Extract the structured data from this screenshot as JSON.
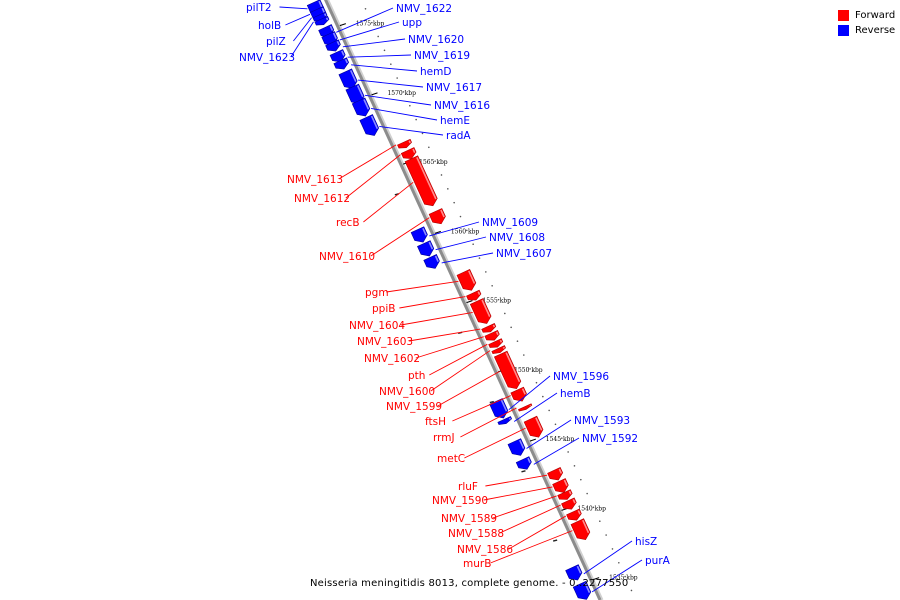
{
  "caption": "Neisseria meningitidis 8013, complete genome. - 0..2277550",
  "legend": [
    {
      "label": "Forward",
      "color": "#ff0000"
    },
    {
      "label": "Reverse",
      "color": "#0000ff"
    }
  ],
  "colors": {
    "forward": "#ff0000",
    "reverse": "#0000ff",
    "backbone": "#999999"
  },
  "ticks": [
    {
      "label": "1575 kbp",
      "kbp": 1575
    },
    {
      "label": "1570 kbp",
      "kbp": 1570
    },
    {
      "label": "1565 kbp",
      "kbp": 1565
    },
    {
      "label": "1560 kbp",
      "kbp": 1560
    },
    {
      "label": "1555 kbp",
      "kbp": 1555
    },
    {
      "label": "1550 kbp",
      "kbp": 1550
    },
    {
      "label": "1545 kbp",
      "kbp": 1545
    },
    {
      "label": "1540 kbp",
      "kbp": 1540
    },
    {
      "label": "1535 kbp",
      "kbp": 1535
    }
  ],
  "genes": [
    {
      "name": "pilT2",
      "strand": "reverse"
    },
    {
      "name": "holB",
      "strand": "reverse"
    },
    {
      "name": "pilZ",
      "strand": "reverse"
    },
    {
      "name": "NMV_1623",
      "strand": "reverse"
    },
    {
      "name": "NMV_1622",
      "strand": "reverse"
    },
    {
      "name": "upp",
      "strand": "reverse"
    },
    {
      "name": "NMV_1620",
      "strand": "reverse"
    },
    {
      "name": "NMV_1619",
      "strand": "reverse"
    },
    {
      "name": "hemD",
      "strand": "reverse"
    },
    {
      "name": "NMV_1617",
      "strand": "reverse"
    },
    {
      "name": "NMV_1616",
      "strand": "reverse"
    },
    {
      "name": "hemE",
      "strand": "reverse"
    },
    {
      "name": "radA",
      "strand": "reverse"
    },
    {
      "name": "NMV_1613",
      "strand": "forward"
    },
    {
      "name": "NMV_1612",
      "strand": "forward"
    },
    {
      "name": "recB",
      "strand": "forward"
    },
    {
      "name": "NMV_1610",
      "strand": "forward"
    },
    {
      "name": "NMV_1609",
      "strand": "reverse"
    },
    {
      "name": "NMV_1608",
      "strand": "reverse"
    },
    {
      "name": "NMV_1607",
      "strand": "reverse"
    },
    {
      "name": "pgm",
      "strand": "forward"
    },
    {
      "name": "ppiB",
      "strand": "forward"
    },
    {
      "name": "NMV_1604",
      "strand": "forward"
    },
    {
      "name": "NMV_1603",
      "strand": "forward"
    },
    {
      "name": "NMV_1602",
      "strand": "forward"
    },
    {
      "name": "pth",
      "strand": "forward"
    },
    {
      "name": "NMV_1600",
      "strand": "forward"
    },
    {
      "name": "NMV_1599",
      "strand": "forward"
    },
    {
      "name": "ftsH",
      "strand": "forward"
    },
    {
      "name": "rrmJ",
      "strand": "forward"
    },
    {
      "name": "metC",
      "strand": "forward"
    },
    {
      "name": "NMV_1596",
      "strand": "reverse"
    },
    {
      "name": "hemB",
      "strand": "reverse"
    },
    {
      "name": "NMV_1593",
      "strand": "reverse"
    },
    {
      "name": "NMV_1592",
      "strand": "reverse"
    },
    {
      "name": "rluF",
      "strand": "forward"
    },
    {
      "name": "NMV_1590",
      "strand": "forward"
    },
    {
      "name": "NMV_1589",
      "strand": "forward"
    },
    {
      "name": "NMV_1588",
      "strand": "forward"
    },
    {
      "name": "NMV_1586",
      "strand": "forward"
    },
    {
      "name": "murB",
      "strand": "forward"
    },
    {
      "name": "hisZ",
      "strand": "reverse"
    },
    {
      "name": "purA",
      "strand": "reverse"
    }
  ]
}
